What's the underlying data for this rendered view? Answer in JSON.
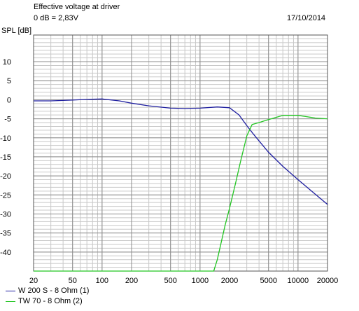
{
  "header": {
    "title": "Effective voltage at driver",
    "reference": "0 dB = 2,83V",
    "date": "17/10/2014"
  },
  "chart_data": {
    "type": "line",
    "xscale": "log",
    "xlim": [
      20,
      20000
    ],
    "ylim": [
      -45,
      17
    ],
    "ylabel": "SPL [dB]",
    "xlabel": "",
    "grid": true,
    "legend_placement": "bottom-left",
    "x_ticks": [
      20,
      50,
      100,
      200,
      500,
      1000,
      2000,
      5000,
      10000,
      20000
    ],
    "x_tick_labels": [
      "20",
      "50",
      "100",
      "200",
      "500",
      "1000",
      "2000",
      "5000",
      "10000",
      "20000"
    ],
    "y_ticks": [
      10,
      5,
      0,
      -5,
      -10,
      -15,
      -20,
      -25,
      -30,
      -35,
      -40
    ],
    "y_tick_labels": [
      "10",
      "5",
      "0",
      "-5",
      "-10",
      "-15",
      "-20",
      "-25",
      "-30",
      "-35",
      "-40"
    ],
    "series": [
      {
        "name": "W 200 S - 8 Ohm (1)",
        "color": "#1f1fa0",
        "x": [
          20,
          30,
          50,
          70,
          100,
          150,
          200,
          300,
          500,
          700,
          1000,
          1500,
          2000,
          2500,
          3000,
          3500,
          4000,
          5000,
          7000,
          10000,
          15000,
          20000
        ],
        "y": [
          -0.3,
          -0.3,
          -0.1,
          0.1,
          0.2,
          -0.3,
          -0.9,
          -1.6,
          -2.2,
          -2.3,
          -2.2,
          -1.9,
          -2.1,
          -4.0,
          -6.8,
          -9.0,
          -10.8,
          -13.8,
          -17.5,
          -21.0,
          -24.8,
          -27.5
        ]
      },
      {
        "name": "TW 70 - 8 Ohm (2)",
        "color": "#22c522",
        "x": [
          20,
          100,
          500,
          1000,
          1380,
          1500,
          1800,
          2000,
          2300,
          2600,
          3000,
          3400,
          4000,
          5000,
          7000,
          10000,
          15000,
          20000
        ],
        "y": [
          -45,
          -45,
          -45,
          -45,
          -45,
          -42,
          -33,
          -28.5,
          -22,
          -16,
          -9.5,
          -6.5,
          -6.0,
          -5.2,
          -4.1,
          -4.1,
          -4.8,
          -5.0
        ]
      }
    ]
  }
}
